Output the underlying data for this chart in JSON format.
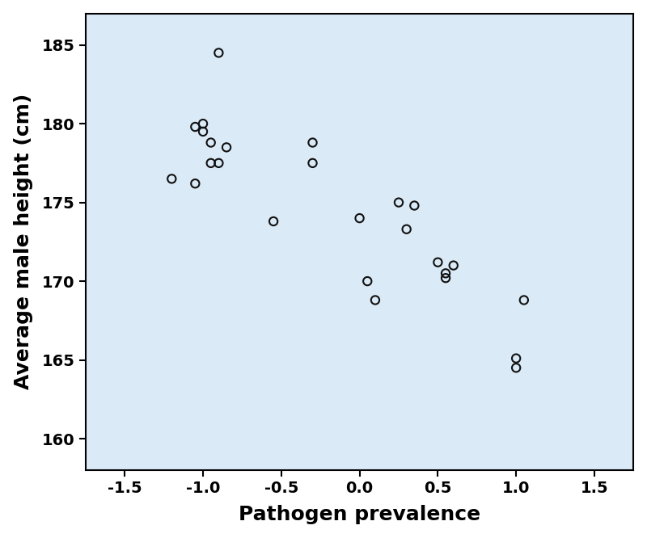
{
  "x": [
    -1.2,
    -1.05,
    -1.05,
    -1.0,
    -1.0,
    -0.95,
    -0.95,
    -0.9,
    -0.9,
    -0.85,
    -0.55,
    -0.3,
    -0.3,
    0.0,
    0.05,
    0.1,
    0.25,
    0.3,
    0.35,
    0.5,
    0.55,
    0.55,
    0.6,
    1.0,
    1.0,
    1.05
  ],
  "y": [
    176.5,
    176.2,
    179.8,
    180.0,
    179.5,
    178.8,
    177.5,
    177.5,
    184.5,
    178.5,
    173.8,
    178.8,
    177.5,
    174.0,
    170.0,
    168.8,
    175.0,
    173.3,
    174.8,
    171.2,
    170.5,
    170.2,
    171.0,
    165.1,
    164.5,
    168.8
  ],
  "xlabel": "Pathogen prevalence",
  "ylabel": "Average male height (cm)",
  "xlim": [
    -1.75,
    1.75
  ],
  "ylim": [
    158,
    187
  ],
  "xticks": [
    -1.5,
    -1.0,
    -0.5,
    0.0,
    0.5,
    1.0,
    1.5
  ],
  "yticks": [
    160,
    165,
    170,
    175,
    180,
    185
  ],
  "background_color": "#daeaf6",
  "fig_background_color": "#ffffff",
  "marker_size": 55,
  "marker_facecolor": "none",
  "marker_edgecolor": "#111111",
  "marker_linewidth": 1.5,
  "xlabel_fontsize": 18,
  "ylabel_fontsize": 18,
  "tick_fontsize": 14,
  "label_fontweight": "bold",
  "tick_fontweight": "bold"
}
